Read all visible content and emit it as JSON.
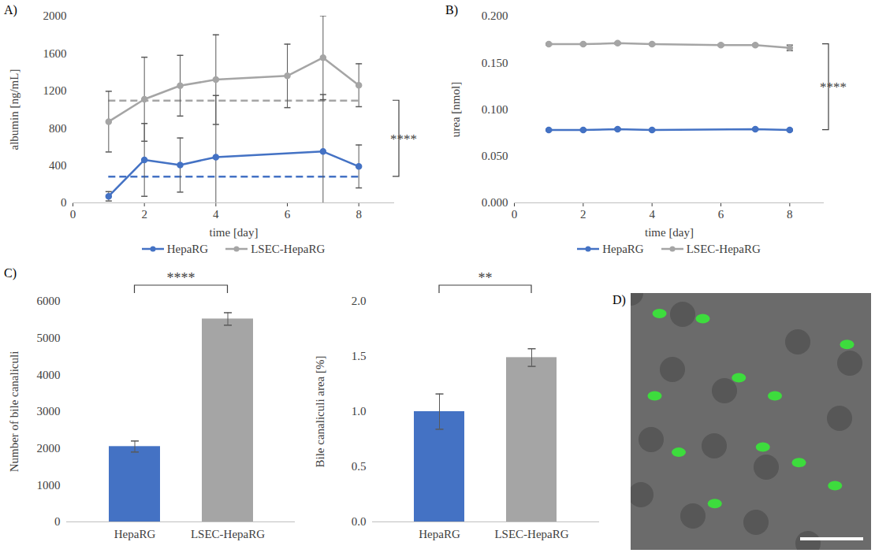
{
  "chart_data": [
    {
      "panel": "A)",
      "type": "line",
      "x_label": "time [day]",
      "y_label": "albumin [ng/mL]",
      "xlim": [
        0,
        9
      ],
      "xticks": [
        0,
        2,
        4,
        6,
        8
      ],
      "ylim": [
        0,
        2000
      ],
      "yticks": [
        0,
        400,
        800,
        1200,
        1600,
        2000
      ],
      "grid": false,
      "legend": "bottom",
      "marker": "circle",
      "series": [
        {
          "name": "HepaRG",
          "color": "#4472c4",
          "x": [
            1,
            2,
            3,
            4,
            7,
            8
          ],
          "values": [
            70,
            460,
            405,
            490,
            550,
            390
          ],
          "errors": [
            50,
            390,
            290,
            660,
            610,
            230
          ]
        },
        {
          "name": "LSEC-HepaRG",
          "color": "#a5a5a5",
          "x": [
            1,
            2,
            3,
            4,
            6,
            7,
            8
          ],
          "values": [
            870,
            1110,
            1255,
            1320,
            1360,
            1555,
            1260
          ],
          "errors": [
            325,
            450,
            325,
            480,
            340,
            450,
            230
          ]
        }
      ],
      "reference_lines": [
        {
          "name": "HepaRG",
          "value": 280,
          "line_style": "dashed"
        },
        {
          "name": "LSEC-HepaRG",
          "value": 1095,
          "line_style": "dashed"
        }
      ],
      "annotations": [
        {
          "text": "****",
          "y": [
            280,
            1095
          ]
        }
      ]
    },
    {
      "panel": "B)",
      "type": "line",
      "x_label": "time [day]",
      "y_label": "urea [nmol]",
      "xlim": [
        0,
        9
      ],
      "xticks": [
        0,
        2,
        4,
        6,
        8
      ],
      "ylim": [
        0,
        0.2
      ],
      "yticks": [
        {
          "value": 0,
          "label": "0.000"
        },
        {
          "value": 0.05,
          "label": "0.050"
        },
        {
          "value": 0.1,
          "label": "0.100"
        },
        {
          "value": 0.15,
          "label": "0.150"
        },
        {
          "value": 0.2,
          "label": "0.200"
        }
      ],
      "grid": false,
      "legend": "bottom",
      "marker": "circle",
      "series": [
        {
          "name": "HepaRG",
          "color": "#4472c4",
          "x": [
            1,
            2,
            3,
            4,
            7,
            8
          ],
          "values": [
            0.078,
            0.078,
            0.079,
            0.078,
            0.079,
            0.078
          ],
          "errors": [
            0.001,
            0.001,
            0.001,
            0.001,
            0.001,
            0.001
          ]
        },
        {
          "name": "LSEC-HepaRG",
          "color": "#a5a5a5",
          "x": [
            1,
            2,
            3,
            4,
            6,
            7,
            8
          ],
          "values": [
            0.17,
            0.17,
            0.171,
            0.17,
            0.169,
            0.169,
            0.166
          ],
          "errors": [
            0.001,
            0.001,
            0.001,
            0.001,
            0.001,
            0.001,
            0.003
          ]
        }
      ],
      "annotations": [
        {
          "text": "****",
          "y": [
            0.078,
            0.17
          ]
        }
      ]
    },
    {
      "panel": "C)",
      "type": "bar",
      "y_label": "Number of bile canaliculi",
      "categories": [
        "HepaRG",
        "LSEC-HepaRG"
      ],
      "values": [
        2050,
        5520
      ],
      "errors": [
        150,
        170
      ],
      "colors": [
        "#4472c4",
        "#a5a5a5"
      ],
      "ylim": [
        0,
        6000
      ],
      "yticks": [
        0,
        1000,
        2000,
        3000,
        4000,
        5000,
        6000
      ],
      "grid": false,
      "annotations": [
        {
          "text": "****"
        }
      ]
    },
    {
      "type": "bar",
      "y_label": "Bile canaliculi area [%]",
      "categories": [
        "HepaRG",
        "LSEC-HepaRG"
      ],
      "values": [
        1.0,
        1.49
      ],
      "errors": [
        0.16,
        0.08
      ],
      "colors": [
        "#4472c4",
        "#a5a5a5"
      ],
      "ylim": [
        0,
        2
      ],
      "yticks": [
        {
          "value": 0,
          "label": "0.0"
        },
        {
          "value": 0.5,
          "label": "0.5"
        },
        {
          "value": 1,
          "label": "1.0"
        },
        {
          "value": 1.5,
          "label": "1.5"
        },
        {
          "value": 2,
          "label": "2.0"
        }
      ],
      "grid": false,
      "annotations": [
        {
          "text": "**"
        }
      ]
    },
    {
      "panel": "D)",
      "type": "image"
    }
  ]
}
